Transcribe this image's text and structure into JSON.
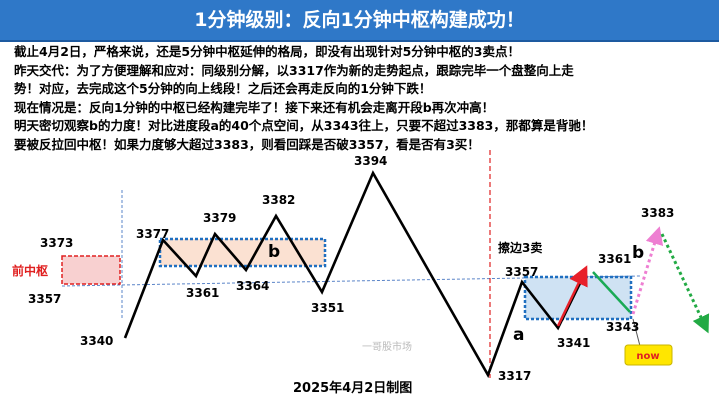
{
  "title": "1分钟级别：反向1分钟中枢构建成功！",
  "notes": [
    "截止4月2日，严格来说，还是5分钟中枢延伸的格局，即没有出现针对5分钟中枢的3卖点！",
    "昨天交代：为了方便理解和应对：同级别分解，以3317作为新的走势起点，跟踪完毕一个盘整向上走",
    "势！对应，去完成这个5分钟的向上线段！之后还会再走反向的1分钟下跌！",
    "现在情况是：反向1分钟的中枢已经构建完毕了！接下来还有机会走离开段b再次冲高！",
    "明天密切观察b的力度！对比进度段a的40个点空间，从3343往上，只要不超过3383，那都算是背驰！",
    "要被反拉回中枢！如果力度够大超过3383，则看回踩是否破3357，看是否有3买！"
  ],
  "left_zone": {
    "label": "前中枢",
    "upper_text": "3373",
    "lower_text": "3357"
  },
  "points": [
    {
      "label": "3340",
      "value": 3340
    },
    {
      "label": "3377",
      "value": 3377
    },
    {
      "label": "3361",
      "value": 3361
    },
    {
      "label": "3379",
      "value": 3379
    },
    {
      "label": "3364",
      "value": 3364
    },
    {
      "label": "3382",
      "value": 3382
    },
    {
      "label": "3351",
      "value": 3351
    },
    {
      "label": "3394",
      "value": 3394
    },
    {
      "label": "3317",
      "value": 3317
    },
    {
      "label": "3357",
      "value": 3357
    },
    {
      "label": "3341",
      "value": 3341
    },
    {
      "label": "3361",
      "value": 3361
    },
    {
      "label": "3343",
      "value": 3343
    },
    {
      "label": "3383",
      "value": 3383
    }
  ],
  "boxes": {
    "hub_b_label": "b",
    "right_box_label": "擦边3卖"
  },
  "segments": {
    "a_label": "a",
    "b_label": "b"
  },
  "now_badge": "now",
  "watermark": "一哥股市场",
  "date_caption": "2025年4月2日制图",
  "colors": {
    "title_bg": "#2f78c8",
    "zone_red": "#e02020",
    "zone_fill": "#f8d0d0",
    "hub_blue": "#1f6fc0",
    "hub_fill": "#fbe1d2",
    "right_fill": "#cfe2f3",
    "arrow_red": "#e8202a",
    "arrow_green": "#1aaa55",
    "projection_pink": "#ee7fd2",
    "projection_green": "#22aa44",
    "now_yellow": "#ffe600"
  }
}
